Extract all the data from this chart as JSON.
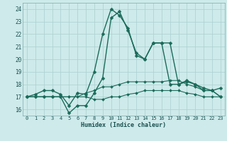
{
  "xlabel": "Humidex (Indice chaleur)",
  "bg_color": "#ceeaea",
  "grid_color": "#aacfcf",
  "line_color": "#1a6b5a",
  "xlim": [
    -0.5,
    23.5
  ],
  "ylim": [
    15.5,
    24.5
  ],
  "yticks": [
    16,
    17,
    18,
    19,
    20,
    21,
    22,
    23,
    24
  ],
  "xticks": [
    0,
    1,
    2,
    3,
    4,
    5,
    6,
    7,
    8,
    9,
    10,
    11,
    12,
    13,
    14,
    15,
    16,
    17,
    18,
    19,
    20,
    21,
    22,
    23
  ],
  "series": [
    {
      "y": [
        17.0,
        17.2,
        17.5,
        17.5,
        17.2,
        16.3,
        17.3,
        17.2,
        19.0,
        22.0,
        24.0,
        23.5,
        22.5,
        20.3,
        20.0,
        21.3,
        21.3,
        21.3,
        18.0,
        18.2,
        18.0,
        17.7,
        17.5,
        17.7
      ],
      "linestyle": "-",
      "linewidth": 1.0,
      "marker": "D",
      "markersize": 2.5
    },
    {
      "y": [
        17.0,
        17.0,
        17.0,
        17.0,
        17.0,
        15.7,
        16.3,
        16.3,
        17.3,
        18.5,
        23.3,
        23.8,
        22.3,
        20.5,
        20.0,
        21.3,
        21.3,
        18.0,
        18.0,
        18.3,
        18.0,
        17.5,
        17.5,
        17.0
      ],
      "linestyle": "-",
      "linewidth": 1.0,
      "marker": "D",
      "markersize": 2.5
    },
    {
      "y": [
        17.0,
        17.0,
        17.0,
        17.0,
        17.0,
        17.0,
        17.0,
        17.3,
        17.5,
        17.8,
        17.8,
        18.0,
        18.2,
        18.2,
        18.2,
        18.2,
        18.2,
        18.3,
        18.3,
        18.0,
        17.8,
        17.5,
        17.5,
        17.0
      ],
      "linestyle": "-",
      "linewidth": 0.8,
      "marker": "D",
      "markersize": 2.0
    },
    {
      "y": [
        17.0,
        17.0,
        17.0,
        17.0,
        17.0,
        17.0,
        17.0,
        17.0,
        16.8,
        16.8,
        17.0,
        17.0,
        17.2,
        17.3,
        17.5,
        17.5,
        17.5,
        17.5,
        17.5,
        17.3,
        17.2,
        17.0,
        17.0,
        17.0
      ],
      "linestyle": "-",
      "linewidth": 0.8,
      "marker": "D",
      "markersize": 2.0
    }
  ]
}
